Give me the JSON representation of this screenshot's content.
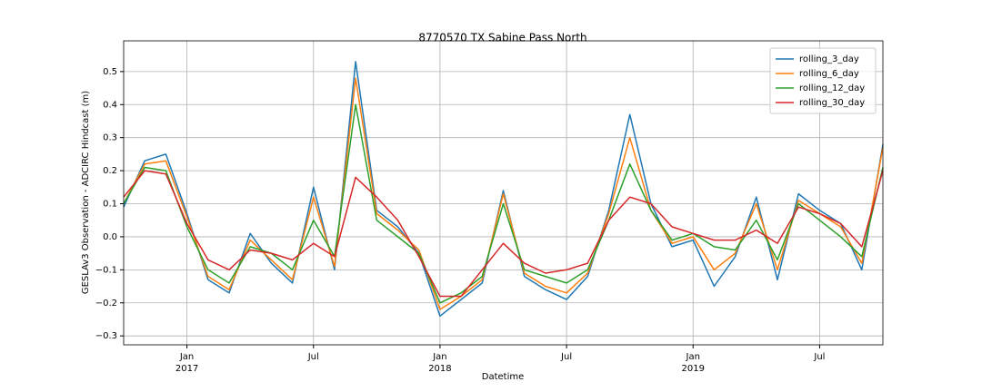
{
  "chart_data": {
    "type": "line",
    "title": "8770570 TX Sabine Pass North",
    "xlabel": "Datetime",
    "ylabel": "GESLAv3 Observation - ADCIRC Hindcast (m)",
    "x": [
      "2016-10",
      "2016-11",
      "2016-12",
      "2017-01",
      "2017-02",
      "2017-03",
      "2017-04",
      "2017-05",
      "2017-06",
      "2017-07",
      "2017-08",
      "2017-09",
      "2017-10",
      "2017-11",
      "2017-12",
      "2018-01",
      "2018-02",
      "2018-03",
      "2018-04",
      "2018-05",
      "2018-06",
      "2018-07",
      "2018-08",
      "2018-09",
      "2018-10",
      "2018-11",
      "2018-12",
      "2019-01",
      "2019-02",
      "2019-03",
      "2019-04",
      "2019-05",
      "2019-06",
      "2019-07",
      "2019-08",
      "2019-09",
      "2019-10"
    ],
    "series": [
      {
        "name": "rolling_3_day",
        "color": "#1f77b4",
        "values": [
          0.09,
          0.23,
          0.25,
          0.07,
          -0.13,
          -0.17,
          0.01,
          -0.08,
          -0.14,
          0.15,
          -0.1,
          0.53,
          0.08,
          0.03,
          -0.05,
          -0.24,
          -0.19,
          -0.14,
          0.14,
          -0.12,
          -0.16,
          -0.19,
          -0.12,
          0.08,
          0.37,
          0.1,
          -0.03,
          -0.01,
          -0.15,
          -0.06,
          0.12,
          -0.13,
          0.13,
          0.08,
          0.04,
          -0.1,
          0.28
        ]
      },
      {
        "name": "rolling_6_day",
        "color": "#ff7f0e",
        "values": [
          0.1,
          0.22,
          0.23,
          0.06,
          -0.12,
          -0.16,
          -0.01,
          -0.07,
          -0.13,
          0.12,
          -0.09,
          0.48,
          0.07,
          0.02,
          -0.04,
          -0.22,
          -0.18,
          -0.13,
          0.13,
          -0.11,
          -0.15,
          -0.17,
          -0.11,
          0.07,
          0.3,
          0.08,
          -0.02,
          0.0,
          -0.1,
          -0.05,
          0.1,
          -0.1,
          0.11,
          0.07,
          0.03,
          -0.08,
          0.27
        ]
      },
      {
        "name": "rolling_12_day",
        "color": "#2ca02c",
        "values": [
          0.1,
          0.21,
          0.2,
          0.03,
          -0.1,
          -0.14,
          -0.03,
          -0.05,
          -0.1,
          0.05,
          -0.06,
          0.4,
          0.05,
          0.0,
          -0.05,
          -0.2,
          -0.17,
          -0.12,
          0.1,
          -0.1,
          -0.12,
          -0.14,
          -0.1,
          0.05,
          0.22,
          0.08,
          -0.01,
          0.01,
          -0.03,
          -0.04,
          0.05,
          -0.07,
          0.1,
          0.05,
          0.0,
          -0.06,
          0.21
        ]
      },
      {
        "name": "rolling_30_day",
        "color": "#d62728",
        "values": [
          0.12,
          0.2,
          0.19,
          0.04,
          -0.07,
          -0.1,
          -0.04,
          -0.05,
          -0.07,
          -0.02,
          -0.06,
          0.18,
          0.12,
          0.05,
          -0.06,
          -0.18,
          -0.18,
          -0.1,
          -0.02,
          -0.08,
          -0.11,
          -0.1,
          -0.08,
          0.05,
          0.12,
          0.1,
          0.03,
          0.01,
          -0.01,
          -0.01,
          0.02,
          -0.02,
          0.09,
          0.07,
          0.04,
          -0.03,
          0.2
        ]
      }
    ],
    "xlim": [
      "2016-10",
      "2019-10"
    ],
    "xticks": [
      {
        "value": "2017-01",
        "label": "Jan"
      },
      {
        "value": "2017-07",
        "label": "Jul"
      },
      {
        "value": "2018-01",
        "label": "Jan"
      },
      {
        "value": "2018-07",
        "label": "Jul"
      },
      {
        "value": "2019-01",
        "label": "Jan"
      },
      {
        "value": "2019-07",
        "label": "Jul"
      }
    ],
    "xtick_years": [
      {
        "value": "2017-01",
        "label": "2017"
      },
      {
        "value": "2018-01",
        "label": "2018"
      },
      {
        "value": "2019-01",
        "label": "2019"
      }
    ],
    "ylim": [
      -0.327,
      0.593
    ],
    "yticks": [
      {
        "value": -0.3,
        "label": "−0.3"
      },
      {
        "value": -0.2,
        "label": "−0.2"
      },
      {
        "value": -0.1,
        "label": "−0.1"
      },
      {
        "value": 0,
        "label": "0.0"
      },
      0.1,
      0.2,
      0.3,
      0.4,
      0.5
    ],
    "grid": true,
    "legend": "upper right"
  }
}
